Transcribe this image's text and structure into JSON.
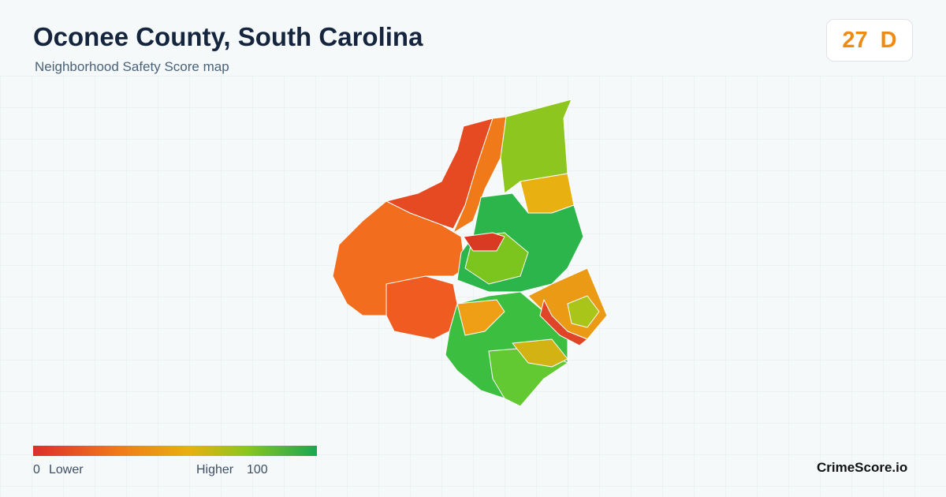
{
  "header": {
    "title": "Oconee County, South Carolina",
    "subtitle": "Neighborhood Safety Score map"
  },
  "score": {
    "value": 27,
    "grade": "D"
  },
  "legend": {
    "min": 0,
    "min_label": "Lower",
    "max_label": "Higher",
    "max": 100
  },
  "brand": "CrimeScore.io"
}
